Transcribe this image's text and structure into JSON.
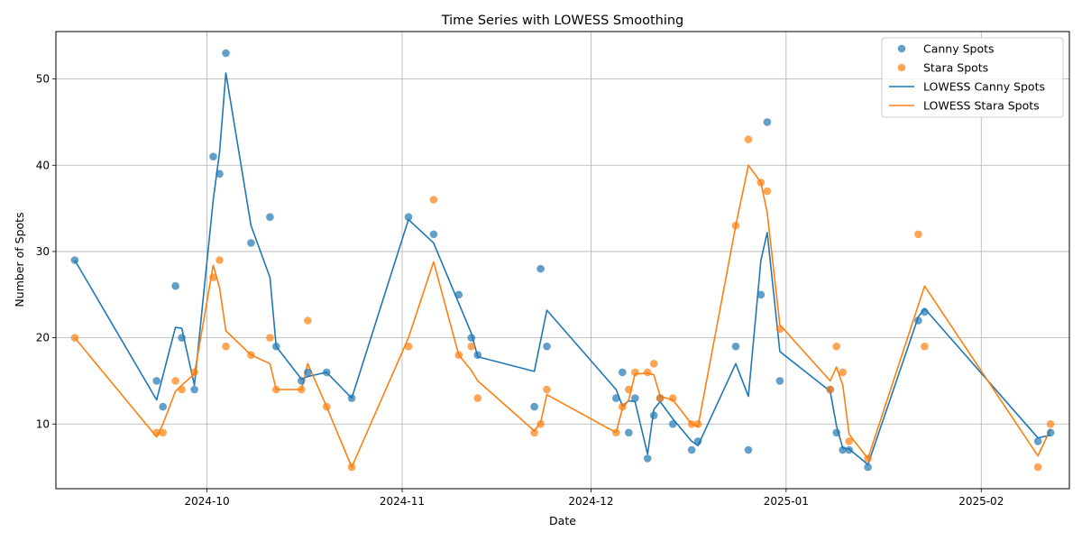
{
  "chart_data": {
    "type": "scatter",
    "title": "Time Series with LOWESS Smoothing",
    "xlabel": "Date",
    "ylabel": "Number of Spots",
    "xlim": [
      "2024-09-07",
      "2025-02-15"
    ],
    "ylim": [
      2.5,
      55.5
    ],
    "x_ticks": [
      {
        "date": "2024-10-01",
        "label": "2024-10"
      },
      {
        "date": "2024-11-01",
        "label": "2024-11"
      },
      {
        "date": "2024-12-01",
        "label": "2024-12"
      },
      {
        "date": "2025-01-01",
        "label": "2025-01"
      },
      {
        "date": "2025-02-01",
        "label": "2025-02"
      }
    ],
    "y_ticks": [
      10,
      20,
      30,
      40,
      50
    ],
    "grid": true,
    "legend": "top-right",
    "colors": {
      "canny": "#1f77b4",
      "stara": "#ff7f0e",
      "grid": "#b0b0b0"
    },
    "series": [
      {
        "name": "Canny Spots",
        "kind": "scatter",
        "color": "#1f77b4",
        "x": [
          "2024-09-10",
          "2024-09-23",
          "2024-09-24",
          "2024-09-26",
          "2024-09-27",
          "2024-09-29",
          "2024-10-02",
          "2024-10-03",
          "2024-10-04",
          "2024-10-08",
          "2024-10-11",
          "2024-10-12",
          "2024-10-16",
          "2024-10-17",
          "2024-10-20",
          "2024-10-24",
          "2024-11-02",
          "2024-11-06",
          "2024-11-10",
          "2024-11-12",
          "2024-11-13",
          "2024-11-22",
          "2024-11-23",
          "2024-11-24",
          "2024-12-05",
          "2024-12-06",
          "2024-12-07",
          "2024-12-08",
          "2024-12-10",
          "2024-12-11",
          "2024-12-12",
          "2024-12-14",
          "2024-12-17",
          "2024-12-18",
          "2024-12-24",
          "2024-12-26",
          "2024-12-28",
          "2024-12-29",
          "2024-12-31",
          "2025-01-08",
          "2025-01-09",
          "2025-01-10",
          "2025-01-11",
          "2025-01-14",
          "2025-01-22",
          "2025-01-23",
          "2025-02-10",
          "2025-02-12"
        ],
        "y": [
          29,
          15,
          12,
          26,
          20,
          14,
          41,
          39,
          53,
          31,
          34,
          19,
          15,
          16,
          16,
          13,
          34,
          32,
          25,
          20,
          18,
          12,
          28,
          19,
          13,
          16,
          9,
          13,
          6,
          11,
          13,
          10,
          7,
          8,
          19,
          7,
          25,
          45,
          15,
          14,
          9,
          7,
          7,
          5,
          22,
          23,
          8,
          9
        ]
      },
      {
        "name": "Stara Spots",
        "kind": "scatter",
        "color": "#ff7f0e",
        "x": [
          "2024-09-10",
          "2024-09-23",
          "2024-09-24",
          "2024-09-26",
          "2024-09-27",
          "2024-09-29",
          "2024-10-02",
          "2024-10-03",
          "2024-10-04",
          "2024-10-08",
          "2024-10-11",
          "2024-10-12",
          "2024-10-16",
          "2024-10-17",
          "2024-10-20",
          "2024-10-24",
          "2024-11-02",
          "2024-11-06",
          "2024-11-10",
          "2024-11-12",
          "2024-11-13",
          "2024-11-22",
          "2024-11-23",
          "2024-11-24",
          "2024-12-05",
          "2024-12-06",
          "2024-12-07",
          "2024-12-08",
          "2024-12-10",
          "2024-12-11",
          "2024-12-12",
          "2024-12-14",
          "2024-12-17",
          "2024-12-18",
          "2024-12-24",
          "2024-12-26",
          "2024-12-28",
          "2024-12-29",
          "2024-12-31",
          "2025-01-08",
          "2025-01-09",
          "2025-01-10",
          "2025-01-11",
          "2025-01-14",
          "2025-01-22",
          "2025-01-23",
          "2025-02-10",
          "2025-02-12"
        ],
        "y": [
          20,
          9,
          9,
          15,
          14,
          16,
          27,
          29,
          19,
          18,
          20,
          14,
          14,
          22,
          12,
          5,
          19,
          36,
          18,
          19,
          13,
          9,
          10,
          14,
          9,
          12,
          14,
          16,
          16,
          17,
          13,
          13,
          10,
          10,
          33,
          43,
          38,
          37,
          21,
          14,
          19,
          16,
          8,
          6,
          32,
          19,
          5,
          10
        ]
      },
      {
        "name": "LOWESS Canny Spots",
        "kind": "line",
        "color": "#1f77b4",
        "x": [
          "2024-09-10",
          "2024-09-23",
          "2024-09-26",
          "2024-09-27",
          "2024-09-29",
          "2024-10-02",
          "2024-10-03",
          "2024-10-04",
          "2024-10-08",
          "2024-10-11",
          "2024-10-12",
          "2024-10-16",
          "2024-10-17",
          "2024-10-20",
          "2024-10-24",
          "2024-11-02",
          "2024-11-06",
          "2024-11-10",
          "2024-11-12",
          "2024-11-13",
          "2024-11-22",
          "2024-11-24",
          "2024-12-05",
          "2024-12-06",
          "2024-12-07",
          "2024-12-08",
          "2024-12-10",
          "2024-12-11",
          "2024-12-12",
          "2024-12-14",
          "2024-12-17",
          "2024-12-18",
          "2024-12-24",
          "2024-12-26",
          "2024-12-28",
          "2024-12-29",
          "2024-12-31",
          "2025-01-08",
          "2025-01-09",
          "2025-01-10",
          "2025-01-11",
          "2025-01-14",
          "2025-01-22",
          "2025-01-23",
          "2025-02-10",
          "2025-02-12"
        ],
        "y": [
          29,
          12.8,
          21.2,
          21.1,
          14.5,
          36,
          41.5,
          50.7,
          33,
          27,
          19,
          15.2,
          15.5,
          16,
          13,
          33.7,
          31,
          24,
          20.5,
          17.8,
          16.1,
          23.2,
          14,
          12.1,
          12.7,
          12.6,
          6.5,
          11.7,
          12.6,
          10.6,
          8,
          7.5,
          17,
          13.2,
          29,
          32.2,
          18.4,
          13.8,
          9.8,
          7.2,
          7.1,
          5.3,
          22.4,
          23.4,
          8.4,
          8.7
        ]
      },
      {
        "name": "LOWESS Stara Spots",
        "kind": "line",
        "color": "#ff7f0e",
        "x": [
          "2024-09-10",
          "2024-09-23",
          "2024-09-24",
          "2024-09-26",
          "2024-09-27",
          "2024-09-29",
          "2024-10-02",
          "2024-10-03",
          "2024-10-04",
          "2024-10-08",
          "2024-10-11",
          "2024-10-12",
          "2024-10-16",
          "2024-10-17",
          "2024-10-20",
          "2024-10-24",
          "2024-11-02",
          "2024-11-06",
          "2024-11-10",
          "2024-11-12",
          "2024-11-13",
          "2024-11-22",
          "2024-11-23",
          "2024-11-24",
          "2024-12-05",
          "2024-12-06",
          "2024-12-07",
          "2024-12-08",
          "2024-12-10",
          "2024-12-11",
          "2024-12-12",
          "2024-12-14",
          "2024-12-17",
          "2024-12-18",
          "2024-12-24",
          "2024-12-26",
          "2024-12-28",
          "2024-12-29",
          "2024-12-31",
          "2025-01-08",
          "2025-01-09",
          "2025-01-10",
          "2025-01-11",
          "2025-01-14",
          "2025-01-23",
          "2025-02-10",
          "2025-02-12"
        ],
        "y": [
          20,
          8.5,
          10,
          13.8,
          14.5,
          15.8,
          28.4,
          25.8,
          20.8,
          18,
          17,
          14,
          14,
          17,
          12,
          5,
          20,
          28.8,
          18,
          16.2,
          15,
          9.2,
          10.2,
          13.4,
          9,
          11.8,
          12.8,
          15.8,
          15.9,
          15.7,
          13.2,
          12.8,
          10,
          9.7,
          33,
          40,
          38,
          34.5,
          21.5,
          15,
          16.6,
          14.5,
          8.8,
          6,
          26,
          6.3,
          9.4
        ]
      }
    ]
  }
}
